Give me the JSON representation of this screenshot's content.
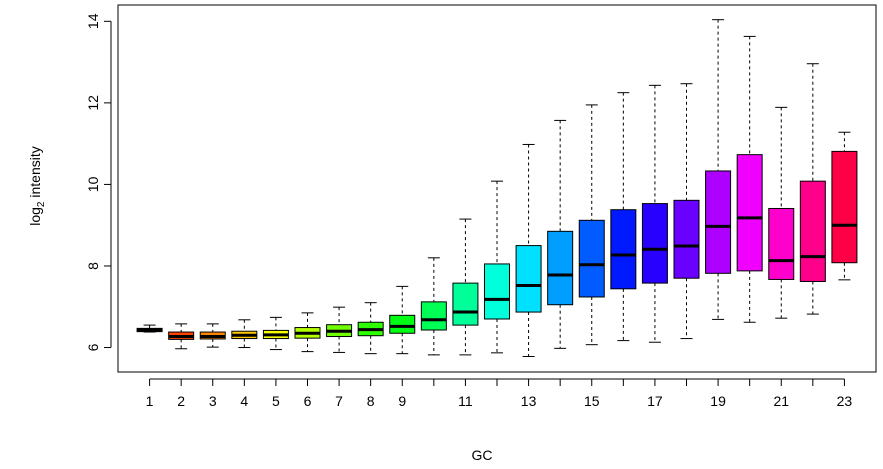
{
  "chart_data": {
    "type": "boxplot",
    "xlabel": "GC",
    "ylabel": {
      "base": "log",
      "subscript": "2",
      "rest": " intensity"
    },
    "ylim": [
      5.4,
      14.4
    ],
    "xlim": [
      0,
      24
    ],
    "x_tick_labels": [
      "1",
      "2",
      "3",
      "4",
      "5",
      "6",
      "7",
      "8",
      "9",
      "",
      "11",
      "",
      "13",
      "",
      "15",
      "",
      "17",
      "",
      "19",
      "",
      "21",
      "",
      "23"
    ],
    "y_ticks": [
      6,
      8,
      10,
      12,
      14
    ],
    "grid": false,
    "legend": "none",
    "boxes": [
      {
        "category": "1",
        "color": "#FF0000",
        "min": 6.38,
        "q1": 6.39,
        "median": 6.43,
        "q3": 6.47,
        "max": 6.55
      },
      {
        "category": "2",
        "color": "#FF4200",
        "min": 5.97,
        "q1": 6.2,
        "median": 6.27,
        "q3": 6.38,
        "max": 6.58
      },
      {
        "category": "3",
        "color": "#FF8500",
        "min": 6.01,
        "q1": 6.21,
        "median": 6.27,
        "q3": 6.38,
        "max": 6.58
      },
      {
        "category": "4",
        "color": "#FFC700",
        "min": 6.0,
        "q1": 6.22,
        "median": 6.3,
        "q3": 6.4,
        "max": 6.68
      },
      {
        "category": "5",
        "color": "#F6FF00",
        "min": 5.95,
        "q1": 6.22,
        "median": 6.31,
        "q3": 6.42,
        "max": 6.74
      },
      {
        "category": "6",
        "color": "#B3FF00",
        "min": 5.9,
        "q1": 6.23,
        "median": 6.35,
        "q3": 6.49,
        "max": 6.85
      },
      {
        "category": "7",
        "color": "#70FF00",
        "min": 5.88,
        "q1": 6.27,
        "median": 6.4,
        "q3": 6.56,
        "max": 6.99
      },
      {
        "category": "8",
        "color": "#2EFF00",
        "min": 5.85,
        "q1": 6.29,
        "median": 6.44,
        "q3": 6.62,
        "max": 7.1
      },
      {
        "category": "9",
        "color": "#00FF14",
        "min": 5.85,
        "q1": 6.35,
        "median": 6.52,
        "q3": 6.79,
        "max": 7.5
      },
      {
        "category": "10",
        "color": "#00FF56",
        "min": 5.82,
        "q1": 6.43,
        "median": 6.68,
        "q3": 7.12,
        "max": 8.2
      },
      {
        "category": "11",
        "color": "#00FF99",
        "min": 5.82,
        "q1": 6.55,
        "median": 6.87,
        "q3": 7.58,
        "max": 9.15
      },
      {
        "category": "12",
        "color": "#00FFDB",
        "min": 5.87,
        "q1": 6.7,
        "median": 7.18,
        "q3": 8.05,
        "max": 10.08
      },
      {
        "category": "13",
        "color": "#00E0FF",
        "min": 5.78,
        "q1": 6.87,
        "median": 7.52,
        "q3": 8.5,
        "max": 10.98
      },
      {
        "category": "14",
        "color": "#009EFF",
        "min": 5.98,
        "q1": 7.05,
        "median": 7.78,
        "q3": 8.85,
        "max": 11.57
      },
      {
        "category": "15",
        "color": "#005CFF",
        "min": 6.07,
        "q1": 7.24,
        "median": 8.03,
        "q3": 9.12,
        "max": 11.95
      },
      {
        "category": "16",
        "color": "#0019FF",
        "min": 6.17,
        "q1": 7.44,
        "median": 8.27,
        "q3": 9.38,
        "max": 12.25
      },
      {
        "category": "17",
        "color": "#2800FF",
        "min": 6.13,
        "q1": 7.58,
        "median": 8.41,
        "q3": 9.53,
        "max": 12.43
      },
      {
        "category": "18",
        "color": "#6A00FF",
        "min": 6.22,
        "q1": 7.7,
        "median": 8.49,
        "q3": 9.61,
        "max": 12.47
      },
      {
        "category": "19",
        "color": "#AD00FF",
        "min": 6.69,
        "q1": 7.82,
        "median": 8.97,
        "q3": 10.33,
        "max": 14.04
      },
      {
        "category": "20",
        "color": "#EF00FF",
        "min": 6.62,
        "q1": 7.88,
        "median": 9.18,
        "q3": 10.73,
        "max": 13.63
      },
      {
        "category": "21",
        "color": "#FF00CC",
        "min": 6.72,
        "q1": 7.67,
        "median": 8.13,
        "q3": 9.41,
        "max": 11.89
      },
      {
        "category": "22",
        "color": "#FF008A",
        "min": 6.82,
        "q1": 7.62,
        "median": 8.23,
        "q3": 10.08,
        "max": 12.96
      },
      {
        "category": "23",
        "color": "#FF0047",
        "min": 7.66,
        "q1": 8.08,
        "median": 9.0,
        "q3": 10.81,
        "max": 11.28
      }
    ]
  }
}
